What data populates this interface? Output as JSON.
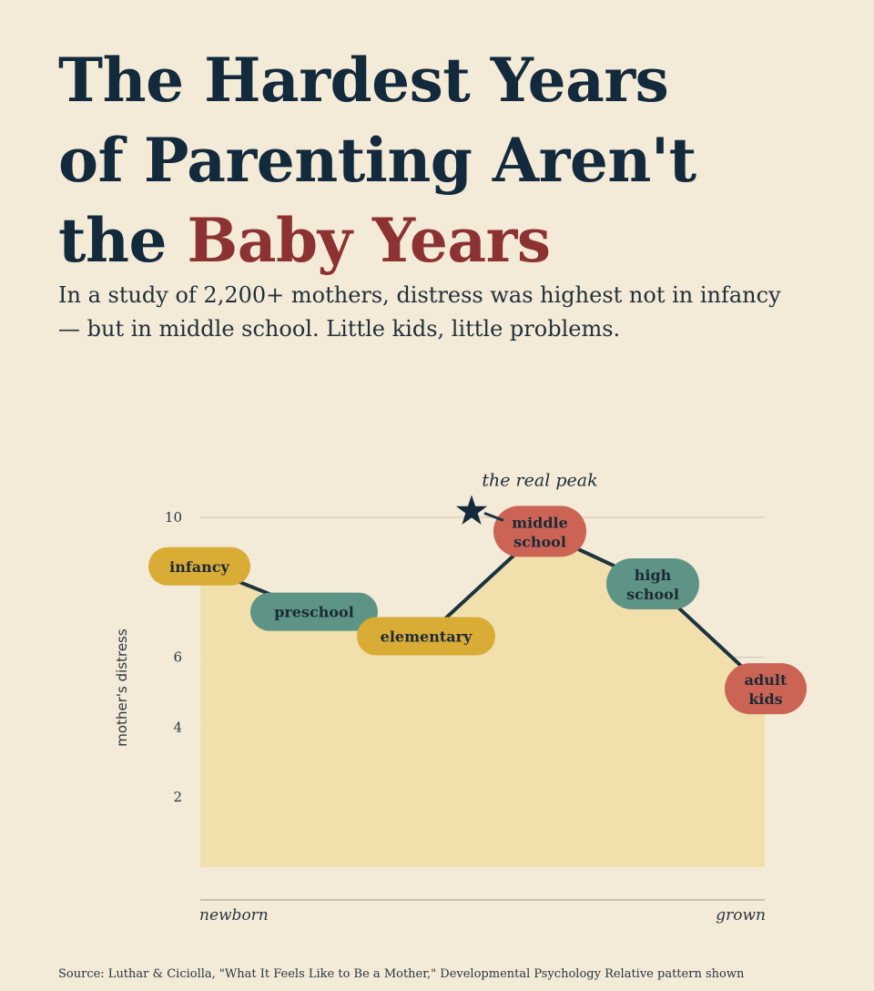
{
  "title": {
    "line1": "The Hardest Years",
    "line2": "of Parenting Aren't",
    "line3_plain": "the ",
    "line3_accent": "Baby Years"
  },
  "subtitle": "In a study of 2,200+ mothers, distress was highest not in infancy — but in middle school. Little kids, little problems.",
  "source": "Source: Luthar & Ciciolla, \"What It Feels Like to Be a Mother,\" Developmental Psychology Relative pattern shown",
  "colors": {
    "background": "#f3ead7",
    "title": "#13293c",
    "accent": "#8c3232",
    "area": "#f0dfaa",
    "line": "#1b3440",
    "yellow": "#d9ac36",
    "teal": "#5e9485",
    "red": "#cc6456"
  },
  "chart_data": {
    "type": "line",
    "ylabel": "mother's distress",
    "xlabel_start": "newborn",
    "xlabel_end": "grown",
    "yticks": [
      2,
      4,
      6,
      10
    ],
    "ylim": [
      0,
      10
    ],
    "grid": true,
    "annotation": "the real peak",
    "categories": [
      "infancy",
      "preschool",
      "elementary",
      "middle school",
      "high school",
      "adult kids"
    ],
    "values": [
      8.6,
      7.3,
      6.6,
      9.6,
      8.1,
      5.1
    ],
    "stage_colors": [
      "yellow",
      "teal",
      "yellow",
      "red",
      "teal",
      "red"
    ]
  }
}
